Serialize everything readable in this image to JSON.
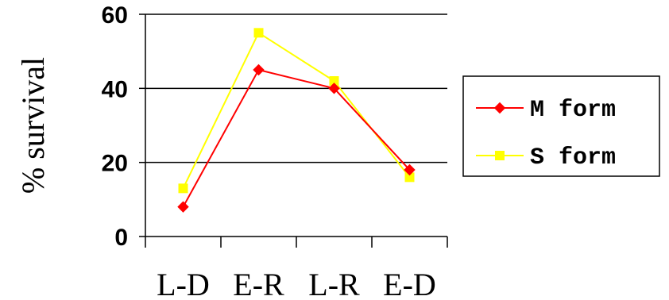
{
  "chart_data": {
    "type": "line",
    "title": "",
    "xlabel": "",
    "ylabel": "% survival",
    "categories": [
      "L-D",
      "E-R",
      "L-R",
      "E-D"
    ],
    "ylim": [
      0,
      60
    ],
    "yticks": [
      0,
      20,
      40,
      60
    ],
    "grid": true,
    "legend_position": "right",
    "series": [
      {
        "name": "M form",
        "color": "#ff0000",
        "marker": "diamond",
        "values": [
          8,
          45,
          40,
          18
        ]
      },
      {
        "name": "S form",
        "color": "#ffff00",
        "marker": "square",
        "values": [
          13,
          55,
          42,
          16
        ]
      }
    ]
  }
}
